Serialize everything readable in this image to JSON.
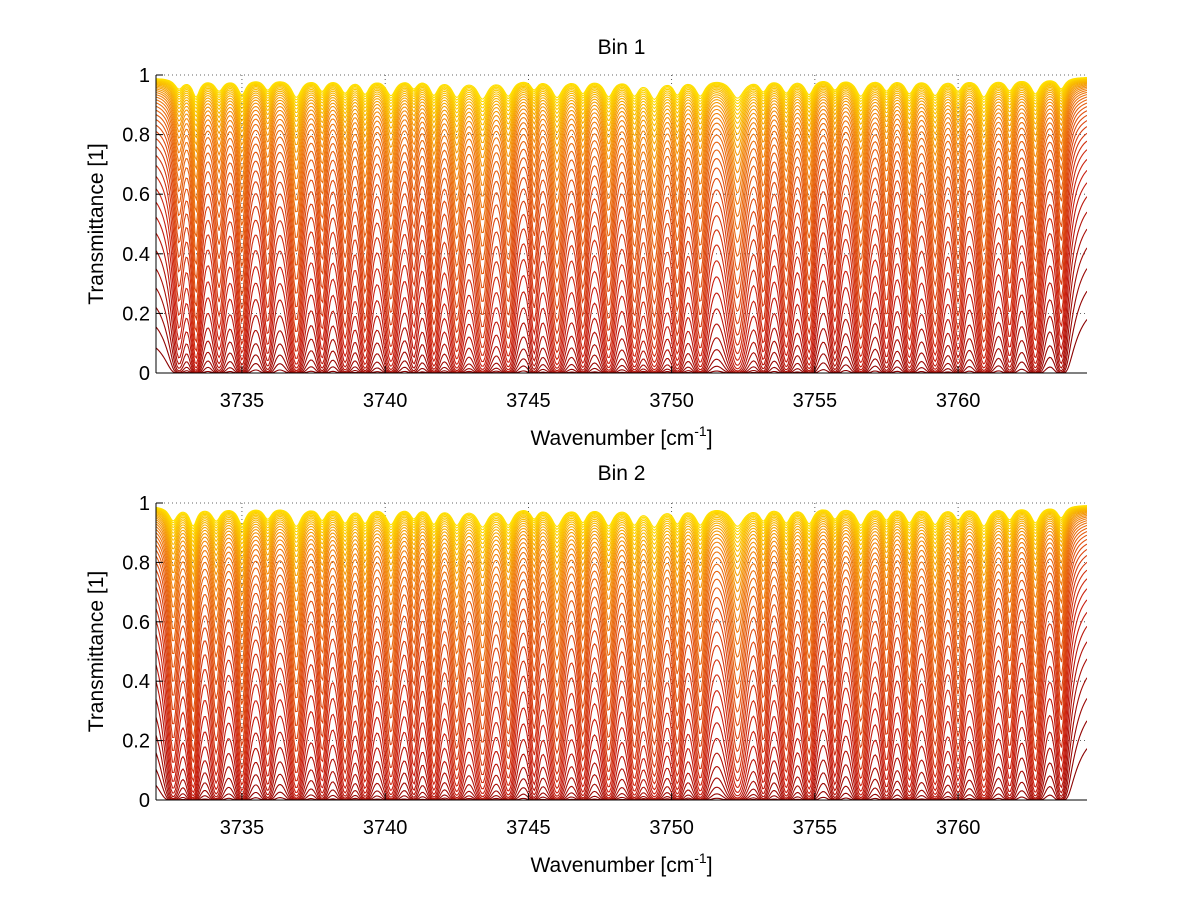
{
  "chart_data": [
    {
      "type": "line",
      "title": "Bin 1",
      "xlabel": "Wavenumber [cm",
      "xlabel_sup": "-1",
      "xlabel_end": "]",
      "ylabel": "Transmittance [1]",
      "xlim": [
        3732,
        3764.5
      ],
      "ylim": [
        0,
        1
      ],
      "xticks": [
        3735,
        3740,
        3745,
        3750,
        3755,
        3760
      ],
      "xtick_labels": [
        "3735",
        "3740",
        "3745",
        "3750",
        "3755",
        "3760"
      ],
      "yticks": [
        0,
        0.2,
        0.4,
        0.6,
        0.8,
        1
      ],
      "ytick_labels": [
        "0",
        "0.2",
        "0.4",
        "0.6",
        "0.8",
        "1"
      ],
      "grid": "dotted",
      "series_count": 40,
      "colors": [
        "#8b0000",
        "#c81e10",
        "#e05010",
        "#f08010",
        "#f8b800",
        "#ffe000"
      ],
      "absorption_lines": [
        {
          "x": 3732.8,
          "depth": 0.5,
          "width": 0.18
        },
        {
          "x": 3733.4,
          "depth": 0.9,
          "width": 0.15
        },
        {
          "x": 3734.2,
          "depth": 0.6,
          "width": 0.18
        },
        {
          "x": 3735.0,
          "depth": 0.8,
          "width": 0.17
        },
        {
          "x": 3735.9,
          "depth": 0.55,
          "width": 0.17
        },
        {
          "x": 3736.9,
          "depth": 0.95,
          "width": 0.2
        },
        {
          "x": 3737.8,
          "depth": 0.6,
          "width": 0.16
        },
        {
          "x": 3738.6,
          "depth": 0.7,
          "width": 0.18
        },
        {
          "x": 3739.3,
          "depth": 0.75,
          "width": 0.17
        },
        {
          "x": 3740.2,
          "depth": 0.85,
          "width": 0.2
        },
        {
          "x": 3741.0,
          "depth": 0.45,
          "width": 0.15
        },
        {
          "x": 3741.7,
          "depth": 0.8,
          "width": 0.17
        },
        {
          "x": 3742.5,
          "depth": 0.9,
          "width": 0.2
        },
        {
          "x": 3743.4,
          "depth": 1.0,
          "width": 0.22
        },
        {
          "x": 3744.3,
          "depth": 0.85,
          "width": 0.2
        },
        {
          "x": 3745.2,
          "depth": 0.5,
          "width": 0.15
        },
        {
          "x": 3746.0,
          "depth": 0.95,
          "width": 0.22
        },
        {
          "x": 3746.9,
          "depth": 0.7,
          "width": 0.17
        },
        {
          "x": 3747.8,
          "depth": 0.9,
          "width": 0.2
        },
        {
          "x": 3748.7,
          "depth": 0.8,
          "width": 0.18
        },
        {
          "x": 3749.4,
          "depth": 1.0,
          "width": 0.22
        },
        {
          "x": 3750.2,
          "depth": 0.75,
          "width": 0.17
        },
        {
          "x": 3751.0,
          "depth": 0.85,
          "width": 0.2
        },
        {
          "x": 3752.3,
          "depth": 1.0,
          "width": 0.28
        },
        {
          "x": 3753.2,
          "depth": 0.6,
          "width": 0.16
        },
        {
          "x": 3754.0,
          "depth": 0.7,
          "width": 0.18
        },
        {
          "x": 3754.8,
          "depth": 0.8,
          "width": 0.18
        },
        {
          "x": 3755.7,
          "depth": 0.55,
          "width": 0.16
        },
        {
          "x": 3756.6,
          "depth": 0.9,
          "width": 0.2
        },
        {
          "x": 3757.5,
          "depth": 0.6,
          "width": 0.17
        },
        {
          "x": 3758.3,
          "depth": 0.75,
          "width": 0.18
        },
        {
          "x": 3759.2,
          "depth": 0.85,
          "width": 0.2
        },
        {
          "x": 3760.0,
          "depth": 0.6,
          "width": 0.17
        },
        {
          "x": 3760.9,
          "depth": 0.95,
          "width": 0.2
        },
        {
          "x": 3761.8,
          "depth": 0.6,
          "width": 0.17
        },
        {
          "x": 3762.7,
          "depth": 0.8,
          "width": 0.18
        },
        {
          "x": 3763.6,
          "depth": 0.55,
          "width": 0.16
        }
      ]
    },
    {
      "type": "line",
      "title": "Bin 2",
      "xlabel": "Wavenumber [cm",
      "xlabel_sup": "-1",
      "xlabel_end": "]",
      "ylabel": "Transmittance [1]",
      "xlim": [
        3732,
        3764.5
      ],
      "ylim": [
        0,
        1
      ],
      "xticks": [
        3735,
        3740,
        3745,
        3750,
        3755,
        3760
      ],
      "xtick_labels": [
        "3735",
        "3740",
        "3745",
        "3750",
        "3755",
        "3760"
      ],
      "yticks": [
        0,
        0.2,
        0.4,
        0.6,
        0.8,
        1
      ],
      "ytick_labels": [
        "0",
        "0.2",
        "0.4",
        "0.6",
        "0.8",
        "1"
      ],
      "grid": "dotted",
      "series_count": 40,
      "colors": [
        "#8b0000",
        "#c81e10",
        "#e05010",
        "#f08010",
        "#f8b800",
        "#ffe000"
      ],
      "absorption_lines": [
        {
          "x": 3732.6,
          "depth": 0.7,
          "width": 0.18
        },
        {
          "x": 3733.3,
          "depth": 0.95,
          "width": 0.15
        },
        {
          "x": 3734.1,
          "depth": 0.7,
          "width": 0.18
        },
        {
          "x": 3735.0,
          "depth": 0.9,
          "width": 0.17
        },
        {
          "x": 3735.9,
          "depth": 0.6,
          "width": 0.17
        },
        {
          "x": 3736.9,
          "depth": 1.0,
          "width": 0.2
        },
        {
          "x": 3737.8,
          "depth": 0.65,
          "width": 0.16
        },
        {
          "x": 3738.6,
          "depth": 0.8,
          "width": 0.18
        },
        {
          "x": 3739.3,
          "depth": 0.8,
          "width": 0.17
        },
        {
          "x": 3740.2,
          "depth": 0.9,
          "width": 0.2
        },
        {
          "x": 3741.0,
          "depth": 0.55,
          "width": 0.15
        },
        {
          "x": 3741.7,
          "depth": 0.85,
          "width": 0.17
        },
        {
          "x": 3742.5,
          "depth": 0.9,
          "width": 0.2
        },
        {
          "x": 3743.4,
          "depth": 1.0,
          "width": 0.22
        },
        {
          "x": 3744.3,
          "depth": 0.9,
          "width": 0.2
        },
        {
          "x": 3745.2,
          "depth": 0.55,
          "width": 0.15
        },
        {
          "x": 3746.0,
          "depth": 1.0,
          "width": 0.22
        },
        {
          "x": 3746.9,
          "depth": 0.75,
          "width": 0.17
        },
        {
          "x": 3747.8,
          "depth": 0.95,
          "width": 0.2
        },
        {
          "x": 3748.7,
          "depth": 0.85,
          "width": 0.18
        },
        {
          "x": 3749.4,
          "depth": 1.0,
          "width": 0.22
        },
        {
          "x": 3750.2,
          "depth": 0.8,
          "width": 0.17
        },
        {
          "x": 3751.0,
          "depth": 0.9,
          "width": 0.2
        },
        {
          "x": 3752.3,
          "depth": 1.0,
          "width": 0.28
        },
        {
          "x": 3753.2,
          "depth": 0.65,
          "width": 0.16
        },
        {
          "x": 3754.0,
          "depth": 0.8,
          "width": 0.18
        },
        {
          "x": 3754.8,
          "depth": 0.85,
          "width": 0.18
        },
        {
          "x": 3755.7,
          "depth": 0.6,
          "width": 0.16
        },
        {
          "x": 3756.6,
          "depth": 0.95,
          "width": 0.2
        },
        {
          "x": 3757.5,
          "depth": 0.65,
          "width": 0.17
        },
        {
          "x": 3758.3,
          "depth": 0.8,
          "width": 0.18
        },
        {
          "x": 3759.2,
          "depth": 0.9,
          "width": 0.2
        },
        {
          "x": 3760.0,
          "depth": 0.65,
          "width": 0.17
        },
        {
          "x": 3760.9,
          "depth": 1.0,
          "width": 0.2
        },
        {
          "x": 3761.8,
          "depth": 0.65,
          "width": 0.17
        },
        {
          "x": 3762.7,
          "depth": 0.85,
          "width": 0.18
        },
        {
          "x": 3763.6,
          "depth": 0.6,
          "width": 0.16
        }
      ]
    }
  ]
}
